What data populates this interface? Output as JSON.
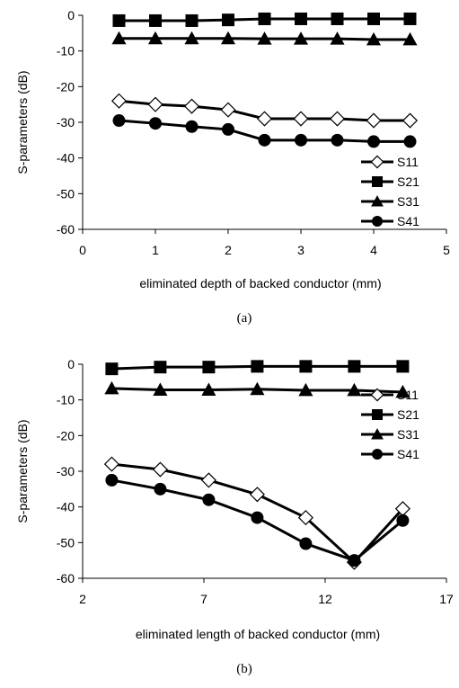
{
  "chart_data": [
    {
      "type": "line",
      "caption": "(a)",
      "xlabel": "eliminated depth of backed conductor (mm)",
      "ylabel": "S-parameters (dB)",
      "xlim": [
        0,
        5
      ],
      "ylim": [
        -60,
        0
      ],
      "xticks": [
        0,
        1,
        2,
        3,
        4,
        5
      ],
      "yticks": [
        0,
        -10,
        -20,
        -30,
        -40,
        -50,
        -60
      ],
      "grid": false,
      "legend_position": "bottom-right",
      "x": [
        0.5,
        1,
        1.5,
        2,
        2.5,
        3,
        3.5,
        4,
        4.5
      ],
      "series": [
        {
          "name": "S11",
          "marker": "diamond-open",
          "values": [
            -24,
            -25,
            -25.5,
            -26.5,
            -29,
            -29,
            -29,
            -29.5,
            -29.5
          ]
        },
        {
          "name": "S21",
          "marker": "square",
          "values": [
            -1.5,
            -1.5,
            -1.5,
            -1.3,
            -1,
            -1,
            -1,
            -1,
            -1
          ]
        },
        {
          "name": "S31",
          "marker": "triangle",
          "values": [
            -6.5,
            -6.5,
            -6.5,
            -6.5,
            -6.6,
            -6.6,
            -6.6,
            -6.8,
            -6.8
          ]
        },
        {
          "name": "S41",
          "marker": "circle",
          "values": [
            -29.5,
            -30.3,
            -31.2,
            -32,
            -35,
            -35,
            -35,
            -35.4,
            -35.4
          ]
        }
      ]
    },
    {
      "type": "line",
      "caption": "(b)",
      "xlabel": "eliminated length of backed conductor (mm)",
      "ylabel": "S-parameters (dB)",
      "xlim": [
        2,
        17
      ],
      "ylim": [
        -60,
        0
      ],
      "xticks": [
        2,
        7,
        12,
        17
      ],
      "yticks": [
        0,
        -10,
        -20,
        -30,
        -40,
        -50,
        -60
      ],
      "grid": false,
      "legend_position": "right",
      "x": [
        3.2,
        5.2,
        7.2,
        9.2,
        11.2,
        13.2,
        15.2
      ],
      "series": [
        {
          "name": "S11",
          "marker": "diamond-open",
          "values": [
            -28,
            -29.5,
            -32.5,
            -36.5,
            -43,
            -55.5,
            -40.5
          ]
        },
        {
          "name": "S21",
          "marker": "square",
          "values": [
            -1.3,
            -0.8,
            -0.8,
            -0.6,
            -0.6,
            -0.6,
            -0.6
          ]
        },
        {
          "name": "S31",
          "marker": "triangle",
          "values": [
            -6.8,
            -7.2,
            -7.2,
            -7,
            -7.3,
            -7.3,
            -7.8
          ]
        },
        {
          "name": "S41",
          "marker": "circle",
          "values": [
            -32.5,
            -35,
            -38,
            -43,
            -50.3,
            -55,
            -43.8
          ]
        }
      ]
    }
  ]
}
